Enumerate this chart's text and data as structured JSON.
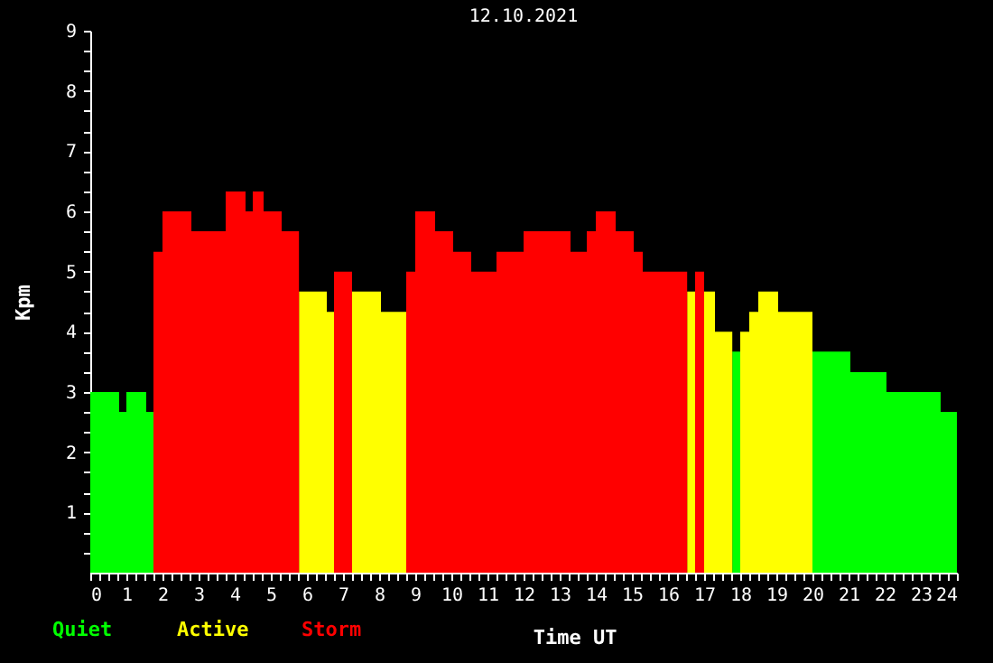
{
  "chart_data": {
    "type": "histogram",
    "title": "12.10.2021",
    "xlabel": "Time UT",
    "ylabel": "Kpm",
    "bins": [
      0,
      0.8,
      1.0,
      1.55,
      1.75,
      2.0,
      2.8,
      3.75,
      4.3,
      4.5,
      4.8,
      5.3,
      5.78,
      6.55,
      6.75,
      7.25,
      8.05,
      8.75,
      9.0,
      9.55,
      10.05,
      10.55,
      11.25,
      12.0,
      13.3,
      13.75,
      14.0,
      14.55,
      15.05,
      15.3,
      16.53,
      16.75,
      17.0,
      17.3,
      17.78,
      18.0,
      18.25,
      18.5,
      19.05,
      20.0,
      21.05,
      22.05,
      23.55,
      24
    ],
    "series": [
      {
        "name": "Quiet",
        "color": "#00ff00",
        "values": [
          3,
          2.67,
          3,
          2.67,
          null,
          null,
          null,
          null,
          null,
          null,
          null,
          null,
          null,
          null,
          null,
          null,
          null,
          null,
          null,
          null,
          null,
          null,
          null,
          null,
          null,
          null,
          null,
          null,
          null,
          null,
          null,
          null,
          null,
          null,
          3.67,
          null,
          null,
          null,
          null,
          3.67,
          3.33,
          3,
          2.67
        ]
      },
      {
        "name": "Active",
        "color": "#ffff00",
        "values": [
          null,
          null,
          null,
          null,
          null,
          null,
          null,
          null,
          null,
          null,
          null,
          null,
          4.67,
          4.33,
          null,
          4.67,
          4.33,
          null,
          null,
          null,
          null,
          null,
          null,
          null,
          null,
          null,
          null,
          null,
          null,
          null,
          4.67,
          null,
          4.67,
          4,
          null,
          4,
          4.33,
          4.67,
          4.33,
          null,
          null,
          null,
          null
        ]
      },
      {
        "name": "Storm",
        "color": "#ff0000",
        "values": [
          null,
          null,
          null,
          null,
          5.33,
          6,
          5.67,
          6.33,
          6,
          6.33,
          6,
          5.67,
          null,
          null,
          5,
          null,
          null,
          5,
          6,
          5.67,
          5.33,
          5,
          5.33,
          5.67,
          5.33,
          5.67,
          6,
          5.67,
          5.33,
          5,
          null,
          5,
          null,
          null,
          null,
          null,
          null,
          null,
          null,
          null,
          null,
          null,
          null
        ]
      }
    ],
    "xlim": [
      0,
      24
    ],
    "xticks": [
      0,
      {
        "value": 0.25,
        "label": null
      },
      {
        "value": 0.5,
        "label": null
      },
      {
        "value": 0.75,
        "label": null
      },
      1,
      {
        "value": 1.25,
        "label": null
      },
      {
        "value": 1.5,
        "label": null
      },
      {
        "value": 1.75,
        "label": null
      },
      2,
      {
        "value": 2.25,
        "label": null
      },
      {
        "value": 2.5,
        "label": null
      },
      {
        "value": 2.75,
        "label": null
      },
      3,
      {
        "value": 3.25,
        "label": null
      },
      {
        "value": 3.5,
        "label": null
      },
      {
        "value": 3.75,
        "label": null
      },
      4,
      {
        "value": 4.25,
        "label": null
      },
      {
        "value": 4.5,
        "label": null
      },
      {
        "value": 4.75,
        "label": null
      },
      5,
      {
        "value": 5.25,
        "label": null
      },
      {
        "value": 5.5,
        "label": null
      },
      {
        "value": 5.75,
        "label": null
      },
      6,
      {
        "value": 6.25,
        "label": null
      },
      {
        "value": 6.5,
        "label": null
      },
      {
        "value": 6.75,
        "label": null
      },
      7,
      {
        "value": 7.25,
        "label": null
      },
      {
        "value": 7.5,
        "label": null
      },
      {
        "value": 7.75,
        "label": null
      },
      8,
      {
        "value": 8.25,
        "label": null
      },
      {
        "value": 8.5,
        "label": null
      },
      {
        "value": 8.75,
        "label": null
      },
      9,
      {
        "value": 9.25,
        "label": null
      },
      {
        "value": 9.5,
        "label": null
      },
      {
        "value": 9.75,
        "label": null
      },
      10,
      {
        "value": 10.25,
        "label": null
      },
      {
        "value": 10.5,
        "label": null
      },
      {
        "value": 10.75,
        "label": null
      },
      11,
      {
        "value": 11.25,
        "label": null
      },
      {
        "value": 11.5,
        "label": null
      },
      {
        "value": 11.75,
        "label": null
      },
      12,
      {
        "value": 12.25,
        "label": null
      },
      {
        "value": 12.5,
        "label": null
      },
      {
        "value": 12.75,
        "label": null
      },
      13,
      {
        "value": 13.25,
        "label": null
      },
      {
        "value": 13.5,
        "label": null
      },
      {
        "value": 13.75,
        "label": null
      },
      14,
      {
        "value": 14.25,
        "label": null
      },
      {
        "value": 14.5,
        "label": null
      },
      {
        "value": 14.75,
        "label": null
      },
      15,
      {
        "value": 15.25,
        "label": null
      },
      {
        "value": 15.5,
        "label": null
      },
      {
        "value": 15.75,
        "label": null
      },
      16,
      {
        "value": 16.25,
        "label": null
      },
      {
        "value": 16.5,
        "label": null
      },
      {
        "value": 16.75,
        "label": null
      },
      17,
      {
        "value": 17.25,
        "label": null
      },
      {
        "value": 17.5,
        "label": null
      },
      {
        "value": 17.75,
        "label": null
      },
      18,
      {
        "value": 18.25,
        "label": null
      },
      {
        "value": 18.5,
        "label": null
      },
      {
        "value": 18.75,
        "label": null
      },
      19,
      {
        "value": 19.25,
        "label": null
      },
      {
        "value": 19.5,
        "label": null
      },
      {
        "value": 19.75,
        "label": null
      },
      20,
      {
        "value": 20.25,
        "label": null
      },
      {
        "value": 20.5,
        "label": null
      },
      {
        "value": 20.75,
        "label": null
      },
      21,
      {
        "value": 21.25,
        "label": null
      },
      {
        "value": 21.5,
        "label": null
      },
      {
        "value": 21.75,
        "label": null
      },
      22,
      {
        "value": 22.25,
        "label": null
      },
      {
        "value": 22.5,
        "label": null
      },
      {
        "value": 22.75,
        "label": null
      },
      23,
      {
        "value": 23.25,
        "label": null
      },
      {
        "value": 23.5,
        "label": null
      },
      {
        "value": 23.75,
        "label": null
      },
      24
    ],
    "ylim": [
      0,
      9
    ],
    "yticks": [
      {
        "value": 0.33,
        "label": null
      },
      {
        "value": 0.67,
        "label": null
      },
      1,
      {
        "value": 1.33,
        "label": null
      },
      {
        "value": 1.67,
        "label": null
      },
      2,
      {
        "value": 2.33,
        "label": null
      },
      {
        "value": 2.67,
        "label": null
      },
      3,
      {
        "value": 3.33,
        "label": null
      },
      {
        "value": 3.67,
        "label": null
      },
      4,
      {
        "value": 4.33,
        "label": null
      },
      {
        "value": 4.67,
        "label": null
      },
      5,
      {
        "value": 5.33,
        "label": null
      },
      {
        "value": 5.67,
        "label": null
      },
      6,
      {
        "value": 6.33,
        "label": null
      },
      {
        "value": 6.67,
        "label": null
      },
      7,
      {
        "value": 7.33,
        "label": null
      },
      {
        "value": 7.67,
        "label": null
      },
      8,
      {
        "value": 8.33,
        "label": null
      },
      {
        "value": 8.67,
        "label": null
      },
      9
    ],
    "grid": false,
    "legend": "bottom left"
  }
}
